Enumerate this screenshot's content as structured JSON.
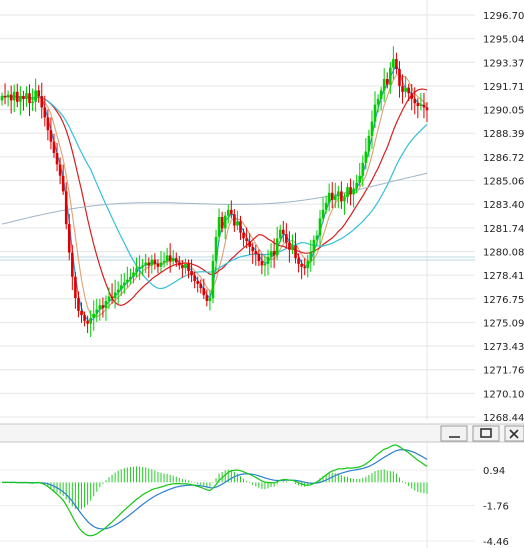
{
  "chart_data": [
    {
      "type": "candlestick",
      "ylim": [
        1268.44,
        1296.7
      ],
      "y_ticks": [
        "1296.70",
        "1295.04",
        "1293.37",
        "1291.71",
        "1290.05",
        "1288.39",
        "1286.72",
        "1285.06",
        "1283.40",
        "1281.74",
        "1280.08",
        "1278.41",
        "1276.75",
        "1275.09",
        "1273.43",
        "1271.76",
        "1270.10",
        "1268.44"
      ],
      "grid": true,
      "up_color": "#00cc00",
      "down_color": "#dd0000",
      "closes": [
        1291.0,
        1290.9,
        1291.1,
        1290.7,
        1291.3,
        1290.6,
        1291.0,
        1290.8,
        1291.2,
        1290.5,
        1290.6,
        1291.4,
        1291.0,
        1290.2,
        1289.5,
        1288.6,
        1287.8,
        1287.0,
        1286.2,
        1285.4,
        1284.3,
        1282.0,
        1280.0,
        1278.3,
        1276.8,
        1275.9,
        1275.6,
        1275.2,
        1275.0,
        1275.4,
        1275.7,
        1276.0,
        1276.3,
        1276.1,
        1276.6,
        1276.9,
        1276.8,
        1277.2,
        1277.4,
        1277.7,
        1277.9,
        1278.1,
        1278.3,
        1278.6,
        1278.9,
        1279.0,
        1279.1,
        1279.3,
        1279.1,
        1279.5,
        1279.2,
        1279.0,
        1279.3,
        1279.4,
        1279.8,
        1279.4,
        1279.6,
        1279.3,
        1279.1,
        1278.9,
        1279.2,
        1278.7,
        1278.4,
        1278.0,
        1277.8,
        1277.5,
        1277.0,
        1276.6,
        1276.8,
        1279.4,
        1281.1,
        1282.5,
        1281.7,
        1282.6,
        1283.0,
        1282.7,
        1281.9,
        1282.2,
        1281.4,
        1281.0,
        1280.8,
        1280.4,
        1280.1,
        1279.9,
        1279.4,
        1279.1,
        1279.2,
        1279.7,
        1280.1,
        1279.8,
        1281.0,
        1281.6,
        1281.3,
        1280.7,
        1280.2,
        1280.5,
        1279.6,
        1279.2,
        1279.0,
        1278.9,
        1279.4,
        1280.0,
        1280.9,
        1281.2,
        1282.4,
        1283.0,
        1283.5,
        1284.2,
        1283.7,
        1284.0,
        1284.3,
        1283.6,
        1283.9,
        1284.6,
        1284.1,
        1284.5,
        1284.9,
        1285.4,
        1286.3,
        1287.1,
        1288.2,
        1289.2,
        1290.4,
        1290.8,
        1291.4,
        1292.2,
        1291.8,
        1293.0,
        1293.6,
        1292.9,
        1291.7,
        1291.3,
        1291.6,
        1291.2,
        1290.8,
        1290.5,
        1290.3,
        1290.4,
        1290.2,
        1290.0
      ]
    },
    {
      "type": "macd",
      "y_ticks": [
        "0.94",
        "-1.76",
        "-4.46"
      ]
    }
  ],
  "window_buttons": {
    "minimize_icon": "minimize-icon",
    "restore_icon": "restore-icon",
    "close_icon": "close-icon"
  }
}
